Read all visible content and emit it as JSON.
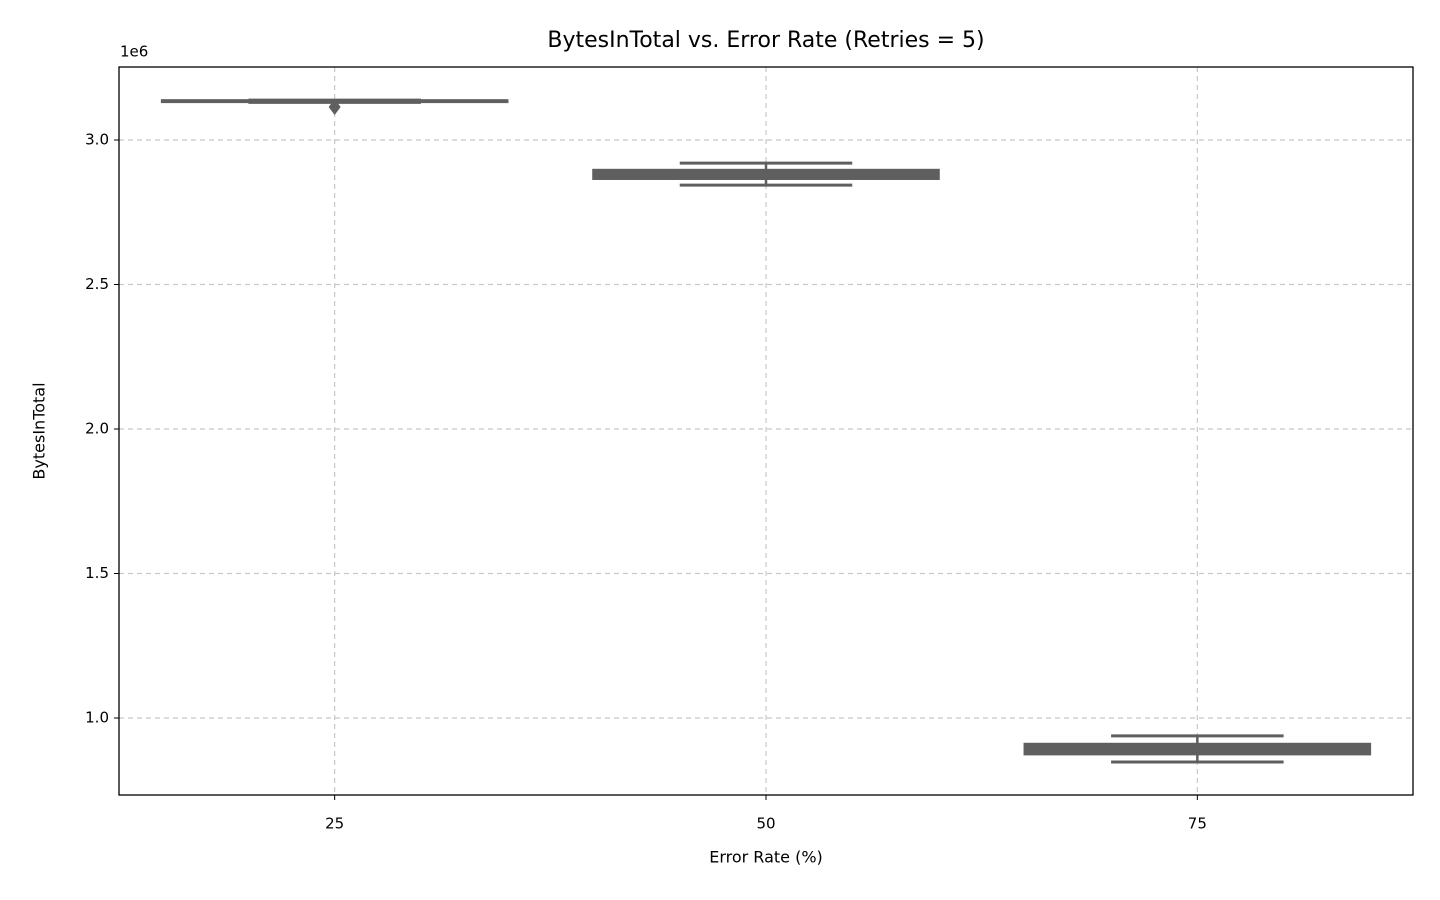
{
  "chart_data": {
    "type": "box",
    "title": "BytesInTotal vs. Error Rate (Retries = 5)",
    "x_label": "Error Rate (%)",
    "y_label": "BytesInTotal",
    "y_offset_label": "1e6",
    "categories": [
      "25",
      "50",
      "75"
    ],
    "color": "#5f5f5f",
    "boxes": [
      {
        "whislo": 3130000,
        "q1": 3132000,
        "med": 3134000,
        "q3": 3137000,
        "whishi": 3138000,
        "fliers": [
          3114000
        ]
      },
      {
        "whislo": 2844000,
        "q1": 2866000,
        "med": 2880000,
        "q3": 2896000,
        "whishi": 2920000,
        "fliers": []
      },
      {
        "whislo": 848000,
        "q1": 875000,
        "med": 890000,
        "q3": 910000,
        "whishi": 938000,
        "fliers": []
      }
    ],
    "ylim": [
      733600,
      3252600
    ],
    "yticks": [
      {
        "value": 1000000,
        "label": "1.0"
      },
      {
        "value": 1500000,
        "label": "1.5"
      },
      {
        "value": 2000000,
        "label": "2.0"
      },
      {
        "value": 2500000,
        "label": "2.5"
      },
      {
        "value": 3000000,
        "label": "3.0"
      }
    ],
    "grid": true
  }
}
